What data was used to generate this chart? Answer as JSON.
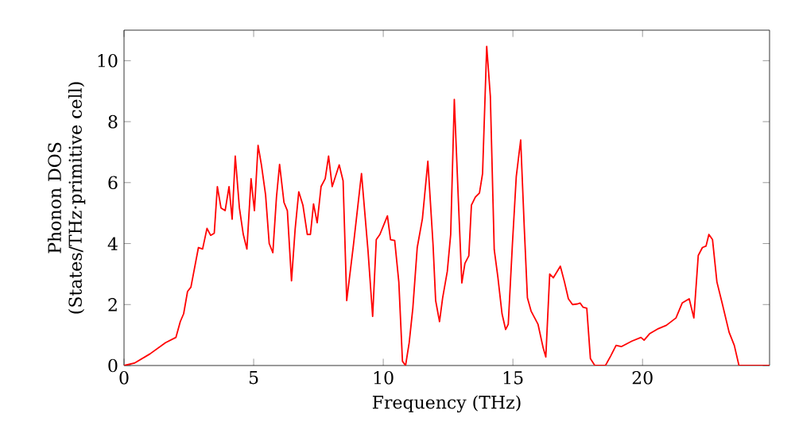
{
  "chart_data": {
    "type": "line",
    "xlabel": "Frequency (THz)",
    "ylabel": "Phonon DOS\n(States/THz·primitive cell)",
    "xlim": [
      0,
      24.9
    ],
    "ylim": [
      0,
      11
    ],
    "xticks": [
      0,
      5,
      10,
      15,
      20
    ],
    "yticks": [
      0,
      2,
      4,
      6,
      8,
      10
    ],
    "marker": "none",
    "line_style": "solid",
    "series": [
      {
        "color": "#ff0000",
        "x": [
          0,
          0.4,
          1.0,
          1.6,
          2.0,
          2.17,
          2.3,
          2.45,
          2.58,
          2.87,
          3.03,
          3.2,
          3.34,
          3.48,
          3.6,
          3.74,
          3.9,
          4.05,
          4.17,
          4.29,
          4.45,
          4.6,
          4.74,
          4.9,
          5.03,
          5.17,
          5.3,
          5.46,
          5.6,
          5.74,
          5.88,
          6.0,
          6.17,
          6.3,
          6.46,
          6.6,
          6.74,
          6.9,
          7.07,
          7.19,
          7.31,
          7.45,
          7.6,
          7.76,
          7.89,
          8.03,
          8.3,
          8.45,
          8.59,
          8.85,
          9.16,
          9.41,
          9.59,
          9.73,
          9.87,
          10.16,
          10.28,
          10.44,
          10.6,
          10.74,
          10.86,
          11.0,
          11.14,
          11.31,
          11.51,
          11.72,
          11.92,
          12.02,
          12.17,
          12.29,
          12.47,
          12.6,
          12.74,
          12.9,
          13.03,
          13.15,
          13.3,
          13.4,
          13.55,
          13.71,
          13.83,
          13.99,
          14.13,
          14.28,
          14.42,
          14.58,
          14.72,
          14.82,
          14.98,
          15.13,
          15.3,
          15.44,
          15.56,
          15.7,
          15.97,
          16.17,
          16.27,
          16.42,
          16.56,
          16.83,
          16.99,
          17.14,
          17.3,
          17.49,
          17.59,
          17.71,
          17.85,
          17.99,
          18.16,
          18.57,
          18.77,
          18.98,
          19.18,
          19.59,
          19.94,
          20.06,
          20.27,
          20.61,
          20.92,
          21.29,
          21.53,
          21.8,
          21.98,
          22.15,
          22.31,
          22.45,
          22.56,
          22.7,
          22.87,
          23.07,
          23.34,
          23.54,
          23.72,
          24.9
        ],
        "values": [
          0,
          0.08,
          0.38,
          0.75,
          0.92,
          1.44,
          1.7,
          2.43,
          2.57,
          3.87,
          3.82,
          4.5,
          4.27,
          4.34,
          5.87,
          5.17,
          5.08,
          5.87,
          4.8,
          6.87,
          5.17,
          4.3,
          3.82,
          6.13,
          5.08,
          7.22,
          6.58,
          5.6,
          4.0,
          3.7,
          5.52,
          6.6,
          5.35,
          5.08,
          2.78,
          4.47,
          5.7,
          5.26,
          4.3,
          4.3,
          5.3,
          4.68,
          5.87,
          6.13,
          6.87,
          5.87,
          6.58,
          6.06,
          2.13,
          3.96,
          6.3,
          3.78,
          1.61,
          4.13,
          4.3,
          4.91,
          4.13,
          4.1,
          2.74,
          0.14,
          0,
          0.75,
          1.88,
          3.87,
          4.82,
          6.7,
          3.96,
          2.13,
          1.44,
          2.22,
          3.09,
          4.3,
          8.73,
          5.35,
          2.71,
          3.35,
          3.6,
          5.26,
          5.52,
          5.66,
          6.3,
          10.47,
          8.83,
          3.8,
          2.9,
          1.7,
          1.18,
          1.35,
          3.96,
          6.2,
          7.4,
          4.5,
          2.22,
          1.79,
          1.35,
          0.57,
          0.28,
          3.0,
          2.88,
          3.26,
          2.74,
          2.19,
          2.0,
          2.02,
          2.05,
          1.91,
          1.88,
          0.23,
          0,
          0,
          0.31,
          0.66,
          0.62,
          0.8,
          0.92,
          0.83,
          1.04,
          1.21,
          1.32,
          1.56,
          2.05,
          2.19,
          1.56,
          3.61,
          3.87,
          3.92,
          4.3,
          4.13,
          2.74,
          2.05,
          1.09,
          0.66,
          0,
          0
        ]
      }
    ]
  }
}
